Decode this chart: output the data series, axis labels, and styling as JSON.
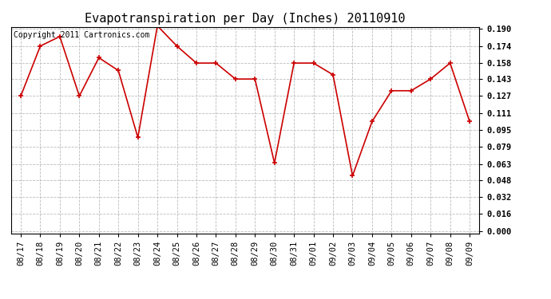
{
  "title": "Evapotranspiration per Day (Inches) 20110910",
  "copyright_text": "Copyright 2011 Cartronics.com",
  "x_labels": [
    "08/17",
    "08/18",
    "08/19",
    "08/20",
    "08/21",
    "08/22",
    "08/23",
    "08/24",
    "08/25",
    "08/26",
    "08/27",
    "08/28",
    "08/29",
    "08/30",
    "08/31",
    "09/01",
    "09/02",
    "09/03",
    "09/04",
    "09/05",
    "09/06",
    "09/07",
    "09/08",
    "09/09"
  ],
  "y_values": [
    0.127,
    0.174,
    0.183,
    0.127,
    0.163,
    0.151,
    0.088,
    0.193,
    0.174,
    0.158,
    0.158,
    0.143,
    0.143,
    0.064,
    0.158,
    0.158,
    0.147,
    0.052,
    0.103,
    0.132,
    0.132,
    0.143,
    0.158,
    0.103
  ],
  "y_ticks": [
    0.0,
    0.016,
    0.032,
    0.048,
    0.063,
    0.079,
    0.095,
    0.111,
    0.127,
    0.143,
    0.158,
    0.174,
    0.19
  ],
  "y_min": 0.0,
  "y_max": 0.19,
  "line_color": "#cc0000",
  "marker_color": "#cc0000",
  "bg_color": "#ffffff",
  "plot_bg_color": "#ffffff",
  "grid_color": "#bbbbbb",
  "title_fontsize": 11,
  "copyright_fontsize": 7,
  "tick_fontsize": 7.5,
  "ytick_fontsize": 7.5
}
